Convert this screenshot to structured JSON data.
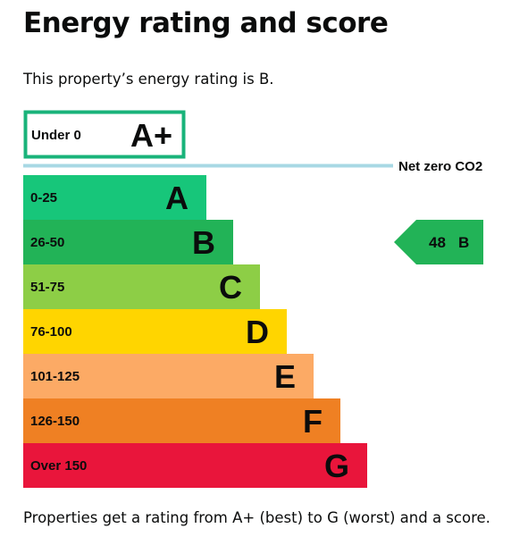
{
  "page": {
    "title": "Energy rating and score",
    "intro": "This property’s energy rating is B.",
    "footer": "Properties get a rating from A+ (best) to G (worst) and a score."
  },
  "chart_data": {
    "type": "bar",
    "title": "",
    "bands": [
      {
        "range": "Under 0",
        "letter": "A+",
        "color": "#19b37a",
        "style": "outline"
      },
      {
        "range": "0-25",
        "letter": "A",
        "color": "#17c67a"
      },
      {
        "range": "26-50",
        "letter": "B",
        "color": "#22b357"
      },
      {
        "range": "51-75",
        "letter": "C",
        "color": "#8dce46"
      },
      {
        "range": "76-100",
        "letter": "D",
        "color": "#ffd500"
      },
      {
        "range": "101-125",
        "letter": "E",
        "color": "#fcaa65"
      },
      {
        "range": "126-150",
        "letter": "F",
        "color": "#ef8023"
      },
      {
        "range": "Over 150",
        "letter": "G",
        "color": "#e9153b"
      }
    ],
    "reference_line": {
      "label": "Net zero CO2",
      "color": "#a8d8e4"
    },
    "current": {
      "score": "48",
      "rating": "B",
      "color": "#22b357"
    }
  }
}
